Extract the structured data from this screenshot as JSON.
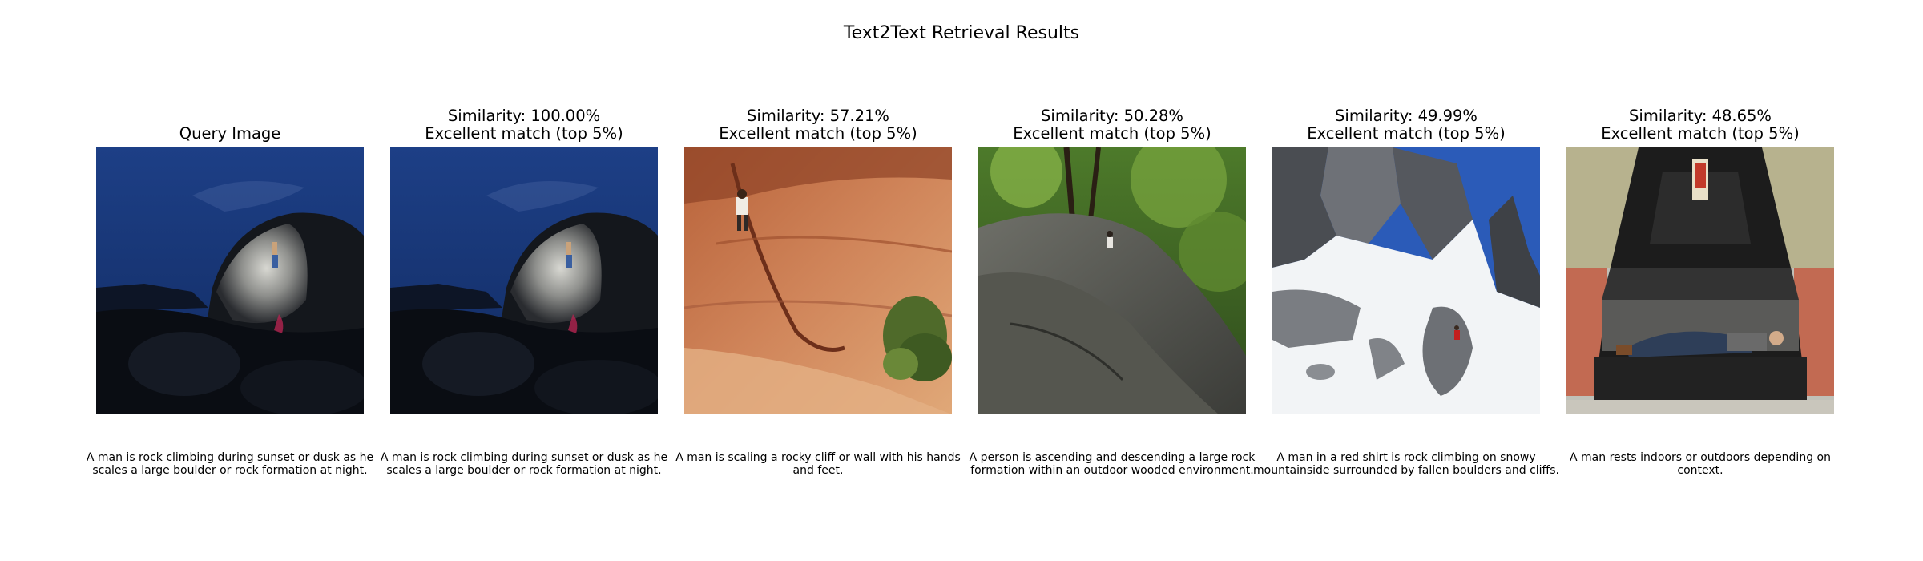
{
  "figure": {
    "title": "Text2Text Retrieval Results"
  },
  "panels": [
    {
      "title_lines": [
        "Query Image"
      ],
      "image": "night-boulder-climber",
      "caption": "A man is rock climbing during sunset or dusk as he scales a large boulder or rock formation at night."
    },
    {
      "title_lines": [
        "Similarity: 100.00%",
        "Excellent match (top 5%)"
      ],
      "image": "night-boulder-climber",
      "caption": "A man is rock climbing during sunset or dusk as he scales a large boulder or rock formation at night."
    },
    {
      "title_lines": [
        "Similarity: 57.21%",
        "Excellent match (top 5%)"
      ],
      "image": "red-rock-cliff-climber",
      "caption": "A man is scaling a rocky cliff or wall with his hands and feet."
    },
    {
      "title_lines": [
        "Similarity: 50.28%",
        "Excellent match (top 5%)"
      ],
      "image": "wooded-boulder-climber",
      "caption": "A person is ascending and descending a large rock formation within an outdoor wooded environment."
    },
    {
      "title_lines": [
        "Similarity: 49.99%",
        "Excellent match (top 5%)"
      ],
      "image": "snowy-mountain-climber",
      "caption": "A man in a red shirt is rock climbing on snowy mountainside surrounded by fallen boulders and cliffs."
    },
    {
      "title_lines": [
        "Similarity: 48.65%",
        "Excellent match (top 5%)"
      ],
      "image": "man-resting-in-boat-sculpture",
      "caption": "A man rests indoors or outdoors depending on context."
    }
  ]
}
